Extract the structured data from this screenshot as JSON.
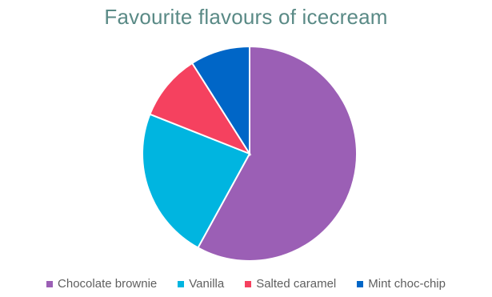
{
  "chart_data": {
    "type": "pie",
    "title": "Favourite flavours of icecream",
    "categories": [
      "Chocolate brownie",
      "Vanilla",
      "Salted caramel",
      "Mint choc-chip"
    ],
    "values": [
      58,
      23,
      10,
      9
    ],
    "colors": [
      "#9b5fb5",
      "#00b5e0",
      "#f5415f",
      "#0066c7"
    ],
    "legend": "bottom"
  }
}
